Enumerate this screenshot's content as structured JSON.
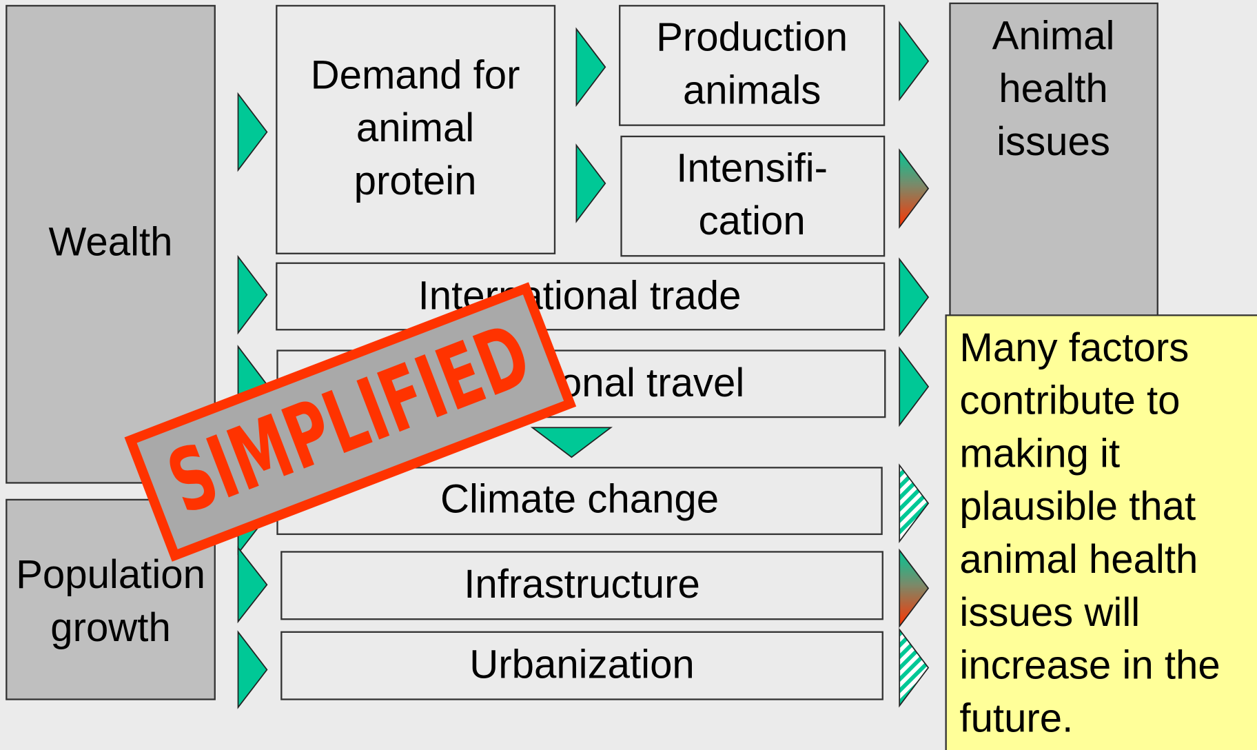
{
  "nodes": [
    {
      "id": "wealth",
      "lines": [
        "Wealth"
      ]
    },
    {
      "id": "population",
      "lines": [
        "Population",
        "growth"
      ]
    },
    {
      "id": "demand",
      "lines": [
        "Demand for",
        "animal",
        "protein"
      ]
    },
    {
      "id": "production",
      "lines": [
        "Production",
        "animals"
      ]
    },
    {
      "id": "intensification",
      "lines": [
        "Intensifi-",
        "cation"
      ]
    },
    {
      "id": "trade",
      "lines": [
        "International trade"
      ]
    },
    {
      "id": "travel",
      "lines": [
        "International travel"
      ]
    },
    {
      "id": "climate",
      "lines": [
        "Climate change"
      ]
    },
    {
      "id": "infrastructure",
      "lines": [
        "Infrastructure"
      ]
    },
    {
      "id": "urbanization",
      "lines": [
        "Urbanization"
      ]
    },
    {
      "id": "health",
      "lines": [
        "Animal",
        "health",
        "issues"
      ]
    }
  ],
  "callout": {
    "lines": [
      "Many factors",
      "contribute to",
      "making it",
      "plausible that",
      "animal health",
      "issues will",
      "increase in the",
      "future."
    ]
  },
  "stamp": "SIMPLIFIED"
}
